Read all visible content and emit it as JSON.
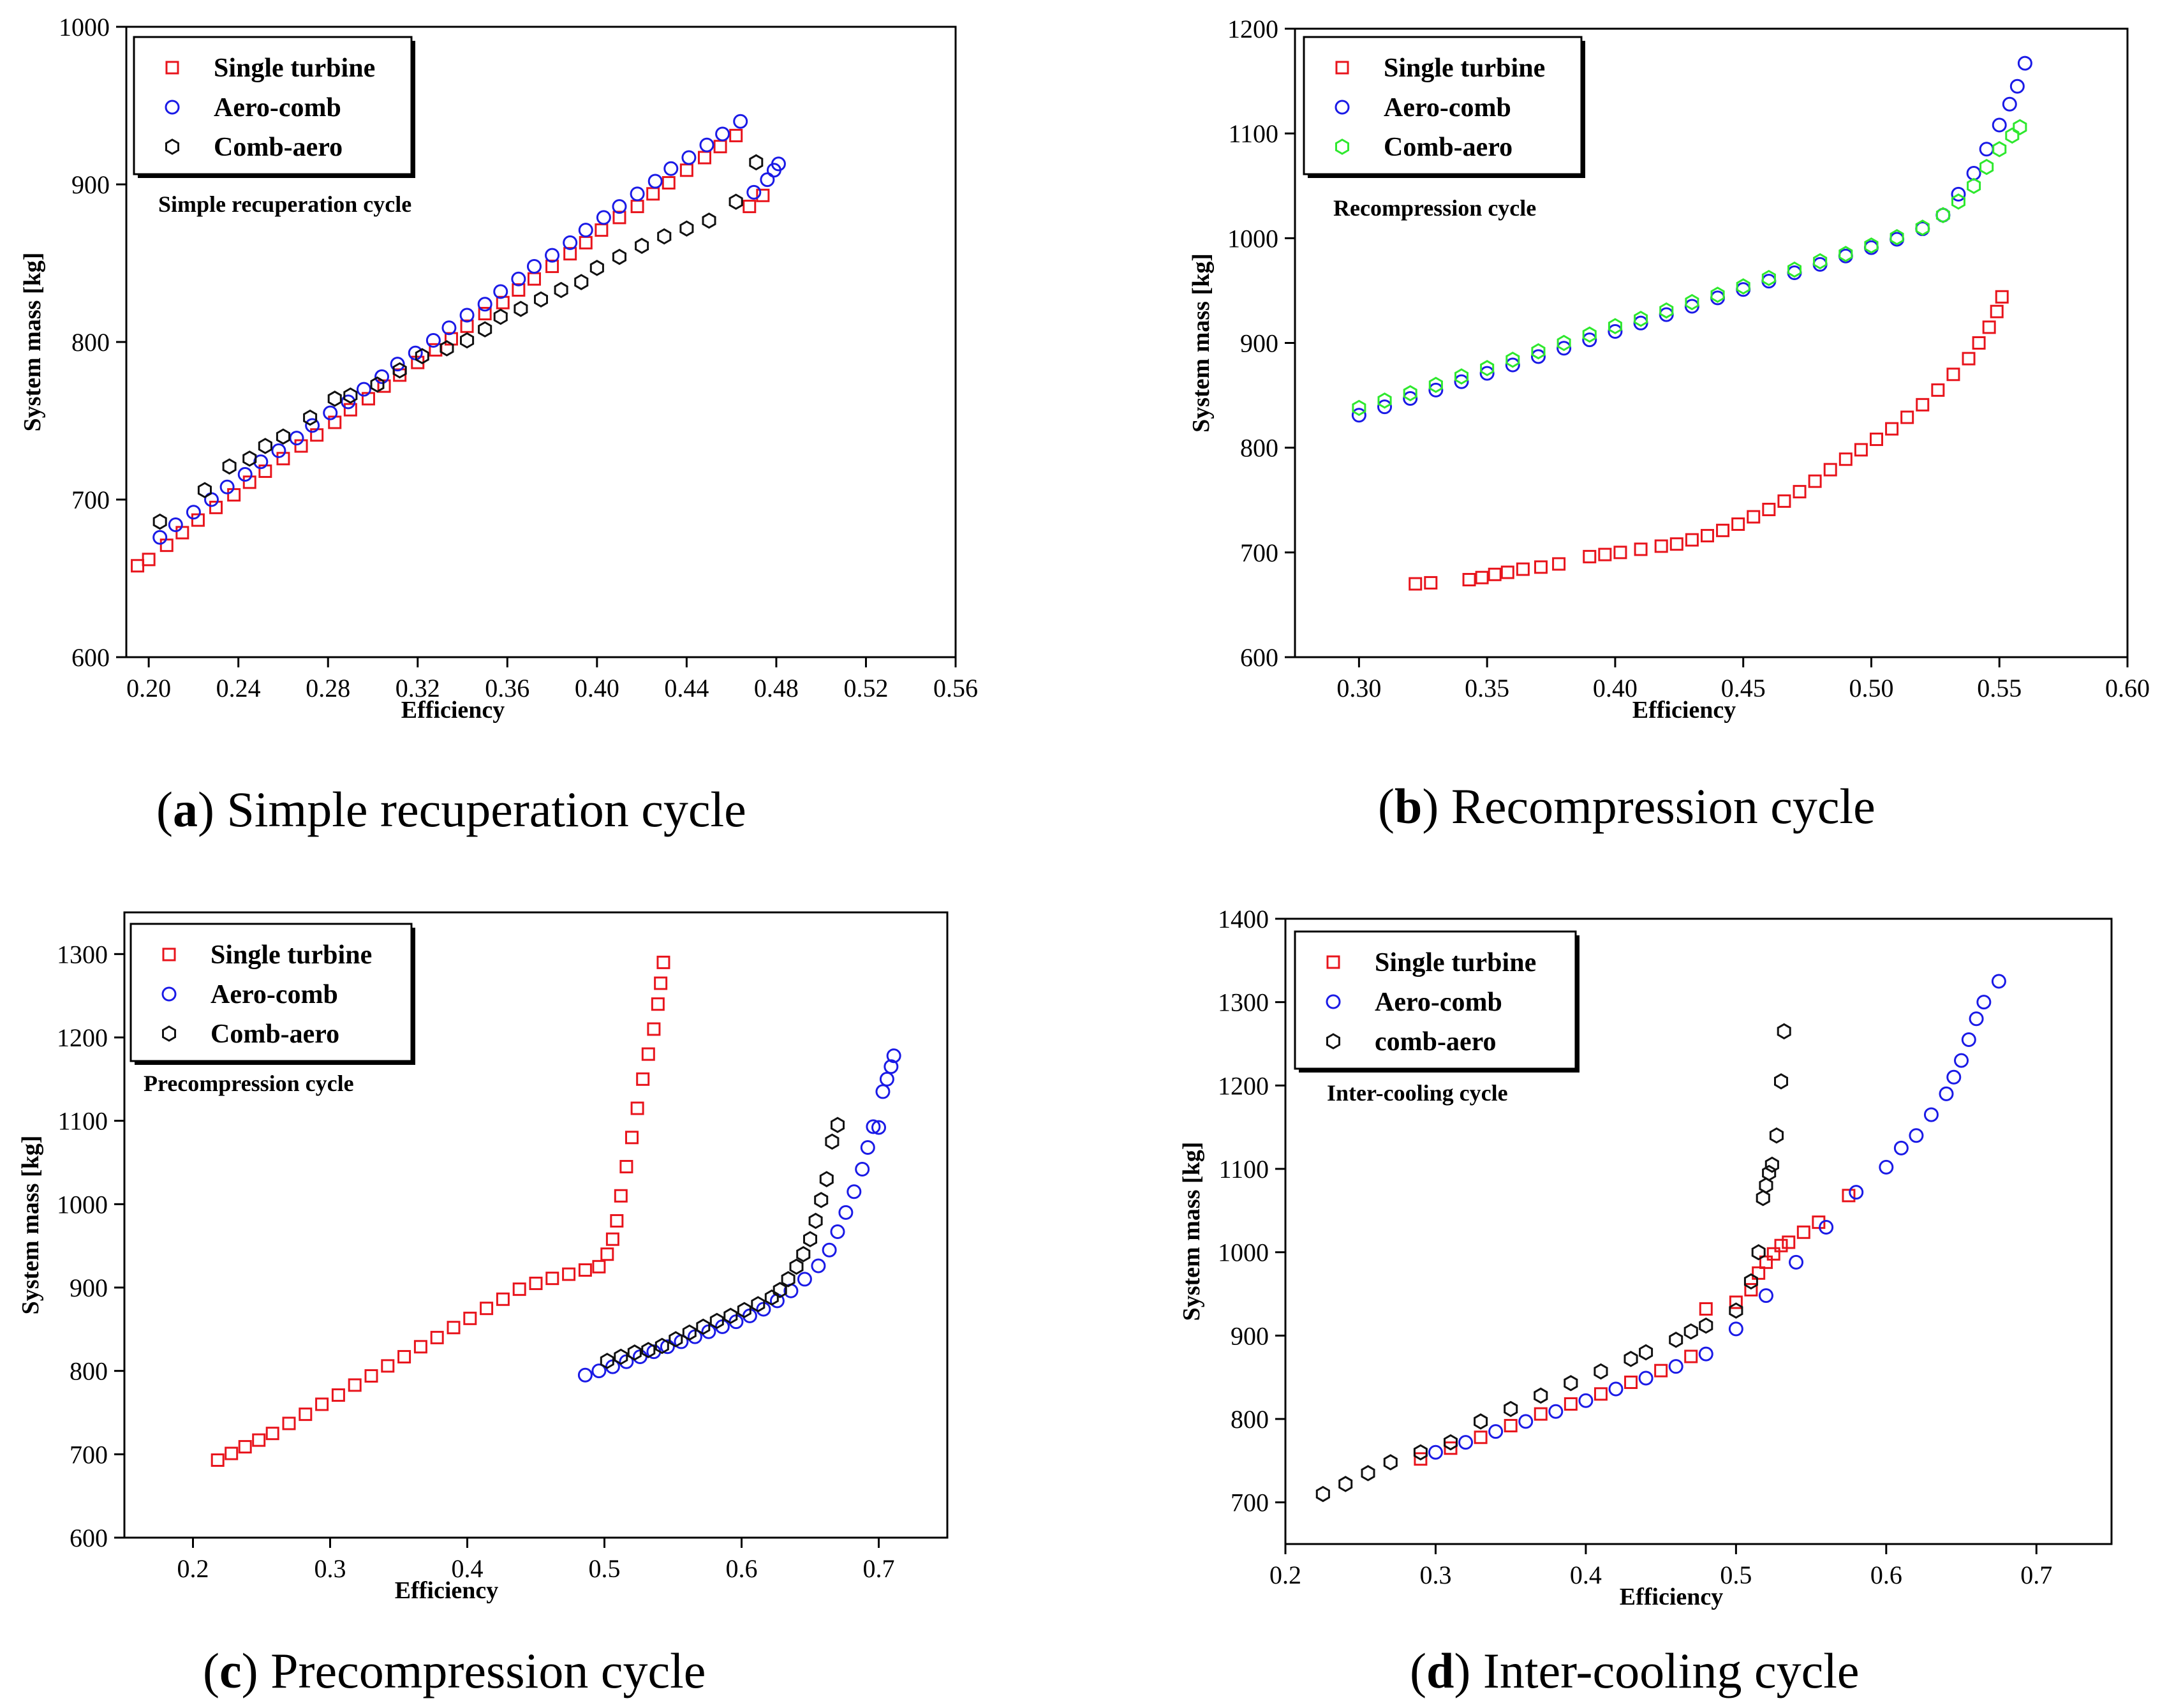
{
  "figure": {
    "captions": [
      {
        "letter": "a",
        "text": "Simple recuperation cycle"
      },
      {
        "letter": "b",
        "text": "Recompression cycle"
      },
      {
        "letter": "c",
        "text": "Precompression cycle"
      },
      {
        "letter": "d",
        "text": "Inter-cooling cycle"
      }
    ]
  },
  "series_colors": {
    "square": "#e8141c",
    "circle": "#1a1ae6",
    "hexagon": "#111111",
    "hexagon_green": "#2ee82e"
  },
  "chart_data": [
    {
      "type": "scatter",
      "panel": "a",
      "title": "Simple recuperation cycle",
      "annotation": "Simple recuperation cycle",
      "xlabel": "Efficiency",
      "ylabel": "System mass [kg]",
      "xlim": [
        0.19,
        0.56
      ],
      "ylim": [
        600,
        1000
      ],
      "xticks": [
        "0.20",
        "0.24",
        "0.28",
        "0.32",
        "0.36",
        "0.40",
        "0.44",
        "0.48",
        "0.52",
        "0.56"
      ],
      "yticks": [
        "600",
        "700",
        "800",
        "900",
        "1000"
      ],
      "legend_position": "top-left",
      "series": [
        {
          "name": "Single turbine",
          "marker": "square",
          "color": "#e8141c",
          "x": [
            0.195,
            0.2,
            0.208,
            0.215,
            0.222,
            0.23,
            0.238,
            0.245,
            0.252,
            0.26,
            0.268,
            0.275,
            0.283,
            0.29,
            0.298,
            0.305,
            0.312,
            0.32,
            0.328,
            0.335,
            0.342,
            0.35,
            0.358,
            0.365,
            0.372,
            0.38,
            0.388,
            0.395,
            0.402,
            0.41,
            0.418,
            0.425,
            0.432,
            0.44,
            0.448,
            0.455,
            0.462,
            0.468,
            0.474
          ],
          "y": [
            658,
            662,
            671,
            679,
            687,
            695,
            703,
            711,
            718,
            726,
            734,
            741,
            749,
            757,
            764,
            772,
            779,
            787,
            795,
            802,
            810,
            818,
            825,
            833,
            840,
            848,
            856,
            863,
            871,
            879,
            886,
            894,
            901,
            909,
            917,
            924,
            931,
            886,
            893
          ]
        },
        {
          "name": "Aero-comb",
          "marker": "circle",
          "color": "#1a1ae6",
          "x": [
            0.205,
            0.212,
            0.22,
            0.228,
            0.235,
            0.243,
            0.25,
            0.258,
            0.266,
            0.273,
            0.281,
            0.289,
            0.296,
            0.304,
            0.311,
            0.319,
            0.327,
            0.334,
            0.342,
            0.35,
            0.357,
            0.365,
            0.372,
            0.38,
            0.388,
            0.395,
            0.403,
            0.41,
            0.418,
            0.426,
            0.433,
            0.441,
            0.449,
            0.456,
            0.464,
            0.47,
            0.476,
            0.479,
            0.481
          ],
          "y": [
            676,
            684,
            692,
            700,
            708,
            716,
            724,
            731,
            739,
            747,
            755,
            762,
            770,
            778,
            786,
            793,
            801,
            809,
            817,
            824,
            832,
            840,
            848,
            855,
            863,
            871,
            879,
            886,
            894,
            902,
            910,
            917,
            925,
            932,
            940,
            895,
            903,
            909,
            913
          ]
        },
        {
          "name": "Comb-aero",
          "marker": "hexagon",
          "color": "#111111",
          "x": [
            0.205,
            0.225,
            0.236,
            0.245,
            0.252,
            0.26,
            0.272,
            0.283,
            0.29,
            0.302,
            0.312,
            0.322,
            0.333,
            0.342,
            0.35,
            0.357,
            0.366,
            0.375,
            0.384,
            0.393,
            0.4,
            0.41,
            0.42,
            0.43,
            0.44,
            0.45,
            0.462,
            0.471
          ],
          "y": [
            686,
            706,
            721,
            726,
            734,
            740,
            752,
            764,
            766,
            773,
            782,
            791,
            796,
            801,
            808,
            816,
            821,
            827,
            833,
            838,
            847,
            854,
            861,
            867,
            872,
            877,
            889,
            914
          ]
        }
      ]
    },
    {
      "type": "scatter",
      "panel": "b",
      "title": "Recompression cycle",
      "annotation": "Recompression cycle",
      "xlabel": "Efficiency",
      "ylabel": "System mass [kg]",
      "xlim": [
        0.275,
        0.6
      ],
      "ylim": [
        600,
        1200
      ],
      "xticks": [
        "0.30",
        "0.35",
        "0.40",
        "0.45",
        "0.50",
        "0.55",
        "0.60"
      ],
      "yticks": [
        "600",
        "700",
        "800",
        "900",
        "1000",
        "1100",
        "1200"
      ],
      "legend_position": "top-left",
      "series": [
        {
          "name": "Single turbine",
          "marker": "square",
          "color": "#e8141c",
          "x": [
            0.322,
            0.328,
            0.343,
            0.348,
            0.353,
            0.358,
            0.364,
            0.371,
            0.378,
            0.39,
            0.396,
            0.402,
            0.41,
            0.418,
            0.424,
            0.43,
            0.436,
            0.442,
            0.448,
            0.454,
            0.46,
            0.466,
            0.472,
            0.478,
            0.484,
            0.49,
            0.496,
            0.502,
            0.508,
            0.514,
            0.52,
            0.526,
            0.532,
            0.538,
            0.542,
            0.546,
            0.549,
            0.551
          ],
          "y": [
            670,
            671,
            674,
            676,
            679,
            681,
            684,
            686,
            689,
            696,
            698,
            700,
            703,
            706,
            708,
            712,
            716,
            721,
            727,
            734,
            741,
            749,
            758,
            768,
            779,
            789,
            798,
            808,
            818,
            829,
            841,
            855,
            870,
            885,
            900,
            915,
            930,
            944
          ]
        },
        {
          "name": "Aero-comb",
          "marker": "circle",
          "color": "#1a1ae6",
          "x": [
            0.3,
            0.31,
            0.32,
            0.33,
            0.34,
            0.35,
            0.36,
            0.37,
            0.38,
            0.39,
            0.4,
            0.41,
            0.42,
            0.43,
            0.44,
            0.45,
            0.46,
            0.47,
            0.48,
            0.49,
            0.5,
            0.51,
            0.52,
            0.528,
            0.534,
            0.54,
            0.545,
            0.55,
            0.554,
            0.557,
            0.56
          ],
          "y": [
            831,
            839,
            847,
            855,
            863,
            871,
            879,
            887,
            895,
            903,
            911,
            919,
            927,
            935,
            943,
            951,
            959,
            967,
            975,
            983,
            991,
            999,
            1009,
            1022,
            1042,
            1062,
            1085,
            1108,
            1128,
            1145,
            1167
          ]
        },
        {
          "name": "Comb-aero",
          "marker": "hexagon",
          "color": "#2ee82e",
          "x": [
            0.3,
            0.31,
            0.32,
            0.33,
            0.34,
            0.35,
            0.36,
            0.37,
            0.38,
            0.39,
            0.4,
            0.41,
            0.42,
            0.43,
            0.44,
            0.45,
            0.46,
            0.47,
            0.48,
            0.49,
            0.5,
            0.51,
            0.52,
            0.528,
            0.534,
            0.54,
            0.545,
            0.55,
            0.555,
            0.558
          ],
          "y": [
            838,
            845,
            852,
            860,
            868,
            876,
            884,
            892,
            900,
            908,
            916,
            923,
            931,
            939,
            946,
            954,
            962,
            970,
            978,
            985,
            993,
            1001,
            1010,
            1022,
            1035,
            1050,
            1068,
            1085,
            1098,
            1106
          ]
        }
      ]
    },
    {
      "type": "scatter",
      "panel": "c",
      "title": "Precompression cycle",
      "annotation": "Precompression cycle",
      "xlabel": "Efficiency",
      "ylabel": "System mass [kg]",
      "xlim": [
        0.15,
        0.75
      ],
      "ylim": [
        600,
        1350
      ],
      "xticks": [
        "0.2",
        "0.3",
        "0.4",
        "0.5",
        "0.6",
        "0.7"
      ],
      "yticks": [
        "600",
        "700",
        "800",
        "900",
        "1000",
        "1100",
        "1200",
        "1300"
      ],
      "legend_position": "top-left",
      "series": [
        {
          "name": "Single turbine",
          "marker": "square",
          "color": "#e8141c",
          "x": [
            0.218,
            0.228,
            0.238,
            0.248,
            0.258,
            0.27,
            0.282,
            0.294,
            0.306,
            0.318,
            0.33,
            0.342,
            0.354,
            0.366,
            0.378,
            0.39,
            0.402,
            0.414,
            0.426,
            0.438,
            0.45,
            0.462,
            0.474,
            0.486,
            0.496,
            0.502,
            0.506,
            0.509,
            0.512,
            0.516,
            0.52,
            0.524,
            0.528,
            0.532,
            0.536,
            0.539,
            0.541,
            0.543
          ],
          "y": [
            693,
            701,
            709,
            717,
            725,
            737,
            748,
            760,
            771,
            783,
            794,
            806,
            817,
            829,
            840,
            852,
            863,
            875,
            886,
            898,
            905,
            911,
            916,
            921,
            925,
            940,
            958,
            980,
            1010,
            1045,
            1080,
            1115,
            1150,
            1180,
            1210,
            1240,
            1265,
            1290
          ]
        },
        {
          "name": "Aero-comb",
          "marker": "circle",
          "color": "#1a1ae6",
          "x": [
            0.486,
            0.496,
            0.506,
            0.516,
            0.526,
            0.536,
            0.546,
            0.556,
            0.566,
            0.576,
            0.586,
            0.596,
            0.606,
            0.616,
            0.626,
            0.636,
            0.646,
            0.656,
            0.664,
            0.67,
            0.676,
            0.682,
            0.688,
            0.692,
            0.696,
            0.7,
            0.703,
            0.706,
            0.709,
            0.711
          ],
          "y": [
            795,
            800,
            805,
            811,
            817,
            823,
            829,
            835,
            841,
            847,
            853,
            859,
            866,
            874,
            884,
            896,
            910,
            926,
            945,
            967,
            990,
            1015,
            1042,
            1068,
            1093,
            1092,
            1135,
            1150,
            1165,
            1178
          ]
        },
        {
          "name": "Comb-aero",
          "marker": "hexagon",
          "color": "#111111",
          "x": [
            0.502,
            0.512,
            0.522,
            0.532,
            0.542,
            0.552,
            0.562,
            0.572,
            0.582,
            0.592,
            0.602,
            0.612,
            0.622,
            0.628,
            0.634,
            0.64,
            0.645,
            0.65,
            0.654,
            0.658,
            0.662,
            0.666,
            0.67
          ],
          "y": [
            812,
            817,
            822,
            825,
            830,
            838,
            846,
            853,
            860,
            866,
            873,
            880,
            888,
            897,
            910,
            925,
            940,
            958,
            980,
            1005,
            1030,
            1075,
            1095
          ]
        }
      ]
    },
    {
      "type": "scatter",
      "panel": "d",
      "title": "Inter-cooling cycle",
      "annotation": "Inter-cooling cycle",
      "xlabel": "Efficiency",
      "ylabel": "System mass [kg]",
      "xlim": [
        0.2,
        0.75
      ],
      "ylim": [
        650,
        1400
      ],
      "xticks": [
        "0.2",
        "0.3",
        "0.4",
        "0.5",
        "0.6",
        "0.7"
      ],
      "yticks": [
        "700",
        "800",
        "900",
        "1000",
        "1100",
        "1200",
        "1300",
        "1400"
      ],
      "legend_position": "top-left",
      "series": [
        {
          "name": "Single turbine",
          "marker": "square",
          "color": "#e8141c",
          "x": [
            0.29,
            0.31,
            0.33,
            0.35,
            0.37,
            0.39,
            0.41,
            0.43,
            0.45,
            0.47,
            0.48,
            0.5,
            0.51,
            0.515,
            0.52,
            0.525,
            0.53,
            0.535,
            0.545,
            0.555,
            0.575
          ],
          "y": [
            752,
            765,
            778,
            792,
            806,
            818,
            830,
            844,
            858,
            875,
            932,
            940,
            955,
            975,
            988,
            998,
            1008,
            1012,
            1024,
            1036,
            1068
          ]
        },
        {
          "name": "Aero-comb",
          "marker": "circle",
          "color": "#1a1ae6",
          "x": [
            0.3,
            0.32,
            0.34,
            0.36,
            0.38,
            0.4,
            0.42,
            0.44,
            0.46,
            0.48,
            0.5,
            0.52,
            0.54,
            0.56,
            0.58,
            0.6,
            0.61,
            0.62,
            0.63,
            0.64,
            0.645,
            0.65,
            0.655,
            0.66,
            0.665,
            0.675
          ],
          "y": [
            760,
            772,
            785,
            797,
            809,
            822,
            836,
            849,
            863,
            878,
            908,
            948,
            988,
            1030,
            1072,
            1102,
            1125,
            1140,
            1165,
            1190,
            1210,
            1230,
            1255,
            1280,
            1300,
            1325
          ]
        },
        {
          "name": "comb-aero",
          "marker": "hexagon",
          "color": "#111111",
          "x": [
            0.225,
            0.24,
            0.255,
            0.27,
            0.29,
            0.31,
            0.33,
            0.35,
            0.37,
            0.39,
            0.41,
            0.43,
            0.44,
            0.46,
            0.47,
            0.48,
            0.5,
            0.51,
            0.515,
            0.518,
            0.52,
            0.522,
            0.524,
            0.527,
            0.53,
            0.532
          ],
          "y": [
            710,
            722,
            735,
            748,
            760,
            772,
            797,
            812,
            828,
            843,
            857,
            872,
            880,
            895,
            905,
            912,
            930,
            965,
            1000,
            1065,
            1080,
            1095,
            1105,
            1140,
            1205,
            1265
          ]
        }
      ]
    }
  ]
}
